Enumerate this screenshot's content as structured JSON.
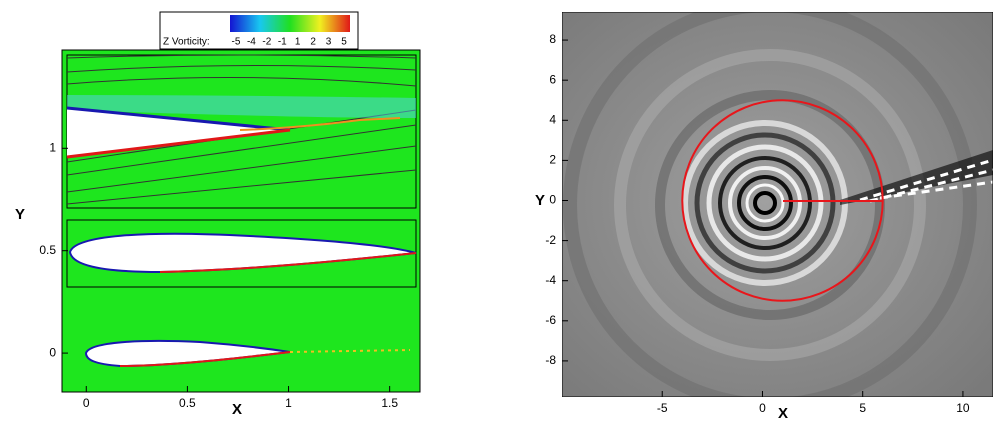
{
  "chart_data": [
    {
      "type": "contour",
      "xlabel": "X",
      "ylabel": "Y",
      "xlim": [
        -0.12,
        1.65
      ],
      "ylim": [
        -0.19,
        1.48
      ],
      "xticks": [
        0,
        0.5,
        1,
        1.5
      ],
      "yticks": [
        0,
        0.5,
        1
      ],
      "colorbar": {
        "title": "Z Vorticity:",
        "ticks": [
          -5,
          -4,
          -2,
          -1,
          1,
          2,
          3,
          5
        ]
      }
    },
    {
      "type": "contour",
      "xlabel": "X",
      "ylabel": "Y",
      "xlim": [
        -10,
        11.5
      ],
      "ylim": [
        -9.8,
        9.4
      ],
      "xticks": [
        -5,
        0,
        5,
        10
      ],
      "yticks": [
        -8,
        -6,
        -4,
        -2,
        0,
        2,
        4,
        6,
        8
      ],
      "circle": {
        "center": [
          1,
          0
        ],
        "radius": 5,
        "color": "#e8161b"
      }
    }
  ]
}
